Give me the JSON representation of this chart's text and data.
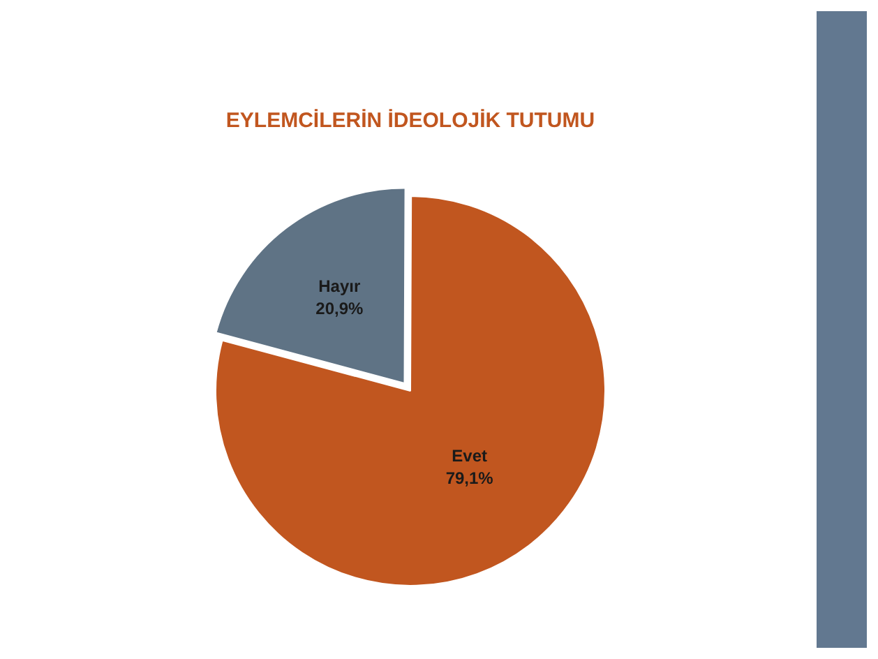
{
  "chart_data": {
    "type": "pie",
    "title": "EYLEMCİLERİN İDEOLOJİK TUTUMU",
    "categories": [
      "Hayır",
      "Evet"
    ],
    "values": [
      20.9,
      79.1
    ],
    "value_labels": [
      "20,9%",
      "79,1%"
    ],
    "colors": [
      "#5f7385",
      "#c1561f"
    ],
    "legend": false
  }
}
